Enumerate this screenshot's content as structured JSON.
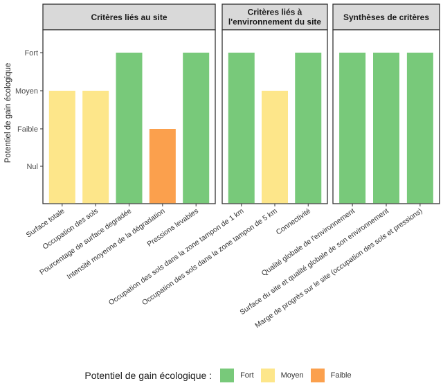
{
  "chart_data": {
    "type": "bar",
    "title": "",
    "ylabel": "Potentiel de gain écologique",
    "xlabel": "",
    "y_levels": [
      "Nul",
      "Faible",
      "Moyen",
      "Fort"
    ],
    "y_ticks": [
      "Fort",
      "Moyen",
      "Faible",
      "Nul"
    ],
    "grid": false,
    "colors": {
      "Fort": "#78C97A",
      "Moyen": "#FDE68A",
      "Faible": "#FBA04D"
    },
    "facets": [
      {
        "title": "Critères liés au site",
        "title_lines": [
          "Critères liés au site"
        ],
        "bars": [
          {
            "category": "Surface totale",
            "value": "Moyen"
          },
          {
            "category": "Occupation des sols",
            "value": "Moyen"
          },
          {
            "category": "Pourcentage de surface degradée",
            "value": "Fort"
          },
          {
            "category": "Intensité moyenne de la dégradation",
            "value": "Faible"
          },
          {
            "category": "Pressions levables",
            "value": "Fort"
          }
        ]
      },
      {
        "title": "Critères liés à l'environnement du site",
        "title_lines": [
          "Critères liés à",
          "l'environnement du site"
        ],
        "bars": [
          {
            "category": "Occupation des sols dans la zone tampon de 1 km",
            "value": "Fort"
          },
          {
            "category": "Occupation des sols dans la zone tampon de 5 km",
            "value": "Moyen"
          },
          {
            "category": "Connectivité",
            "value": "Fort"
          }
        ]
      },
      {
        "title": "Synthèses de critères",
        "title_lines": [
          "Synthèses de critères"
        ],
        "bars": [
          {
            "category": "Qualité globale de l'environnement",
            "value": "Fort"
          },
          {
            "category": "Surface du site et qualité globale de son environnement",
            "value": "Fort"
          },
          {
            "category": "Marge de progrès sur le site (occupation des sols et pressions)",
            "value": "Fort"
          }
        ]
      }
    ],
    "legend": {
      "title": "Potentiel de gain écologique :",
      "position": "bottom",
      "entries": [
        {
          "label": "Fort",
          "color": "#78C97A"
        },
        {
          "label": "Moyen",
          "color": "#FDE68A"
        },
        {
          "label": "Faible",
          "color": "#FBA04D"
        }
      ]
    }
  }
}
